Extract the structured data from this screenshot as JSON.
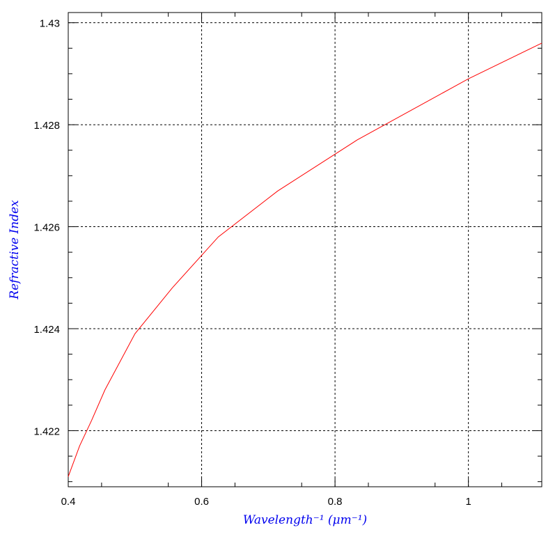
{
  "chart_data": {
    "type": "line",
    "xlabel": "Wavelength⁻¹ (μm⁻¹)",
    "ylabel": "Refractive Index",
    "xlim": [
      0.4,
      1.11
    ],
    "ylim": [
      1.4209,
      1.4302
    ],
    "grid": true,
    "x_ticks": [
      0.4,
      0.6,
      0.8,
      1.0
    ],
    "x_tick_labels": [
      "0.4",
      "0.6",
      "0.8",
      "1"
    ],
    "y_ticks": [
      1.422,
      1.424,
      1.426,
      1.428,
      1.43
    ],
    "y_tick_labels": [
      "1.422",
      "1.424",
      "1.426",
      "1.428",
      "1.43"
    ],
    "series": [
      {
        "color": "#ff0000",
        "x": [
          0.4,
          0.417,
          0.435,
          0.455,
          0.5,
          0.556,
          0.625,
          0.714,
          0.833,
          1.0,
          1.11
        ],
        "y": [
          1.4211,
          1.4217,
          1.4222,
          1.4228,
          1.4239,
          1.4248,
          1.4258,
          1.4267,
          1.4277,
          1.4289,
          1.4296
        ]
      }
    ]
  }
}
